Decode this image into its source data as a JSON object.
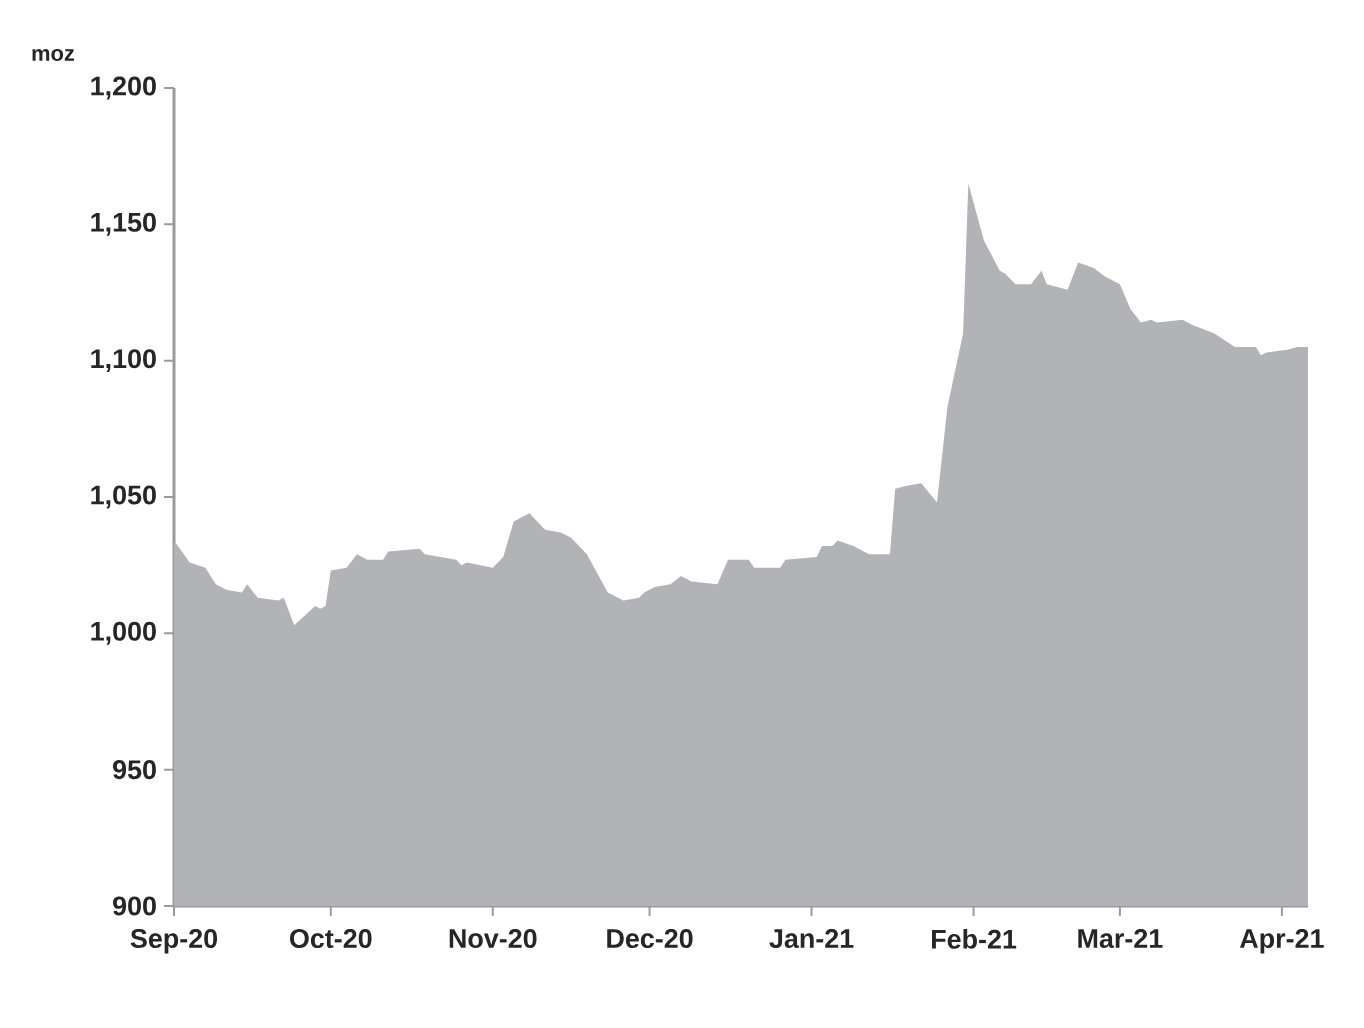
{
  "chart_data": {
    "type": "area",
    "ylabel": "moz",
    "color": "#b2b3b7",
    "x": [
      "2020-09-01",
      "2020-09-04",
      "2020-09-07",
      "2020-09-09",
      "2020-09-11",
      "2020-09-14",
      "2020-09-15",
      "2020-09-17",
      "2020-09-21",
      "2020-09-22",
      "2020-09-24",
      "2020-09-28",
      "2020-09-29",
      "2020-09-30",
      "2020-10-01",
      "2020-10-04",
      "2020-10-06",
      "2020-10-08",
      "2020-10-11",
      "2020-10-12",
      "2020-10-18",
      "2020-10-19",
      "2020-10-25",
      "2020-10-26",
      "2020-10-27",
      "2020-11-01",
      "2020-11-03",
      "2020-11-05",
      "2020-11-08",
      "2020-11-11",
      "2020-11-14",
      "2020-11-16",
      "2020-11-19",
      "2020-11-23",
      "2020-11-26",
      "2020-11-29",
      "2020-11-30",
      "2020-12-02",
      "2020-12-05",
      "2020-12-07",
      "2020-12-09",
      "2020-12-14",
      "2020-12-16",
      "2020-12-20",
      "2020-12-21",
      "2020-12-26",
      "2020-12-27",
      "2021-01-02",
      "2021-01-03",
      "2021-01-05",
      "2021-01-06",
      "2021-01-09",
      "2021-01-12",
      "2021-01-16",
      "2021-01-17",
      "2021-01-19",
      "2021-01-22",
      "2021-01-25",
      "2021-01-27",
      "2021-01-30",
      "2021-01-31",
      "2021-02-03",
      "2021-02-06",
      "2021-02-07",
      "2021-02-09",
      "2021-02-12",
      "2021-02-14",
      "2021-02-15",
      "2021-02-19",
      "2021-02-21",
      "2021-02-24",
      "2021-02-26",
      "2021-03-01",
      "2021-03-03",
      "2021-03-05",
      "2021-03-07",
      "2021-03-08",
      "2021-03-13",
      "2021-03-15",
      "2021-03-19",
      "2021-03-23",
      "2021-03-27",
      "2021-03-28",
      "2021-03-29",
      "2021-04-02",
      "2021-04-04",
      "2021-04-06"
    ],
    "values": [
      1034,
      1026,
      1024,
      1018,
      1016,
      1015,
      1018,
      1013,
      1012,
      1013,
      1003,
      1010,
      1009,
      1010,
      1023,
      1024,
      1029,
      1027,
      1027,
      1030,
      1031,
      1029,
      1027,
      1025,
      1026,
      1024,
      1028,
      1041,
      1044,
      1038,
      1037,
      1035,
      1029,
      1015,
      1012,
      1013,
      1015,
      1017,
      1018,
      1021,
      1019,
      1018,
      1027,
      1027,
      1024,
      1024,
      1027,
      1028,
      1032,
      1032,
      1034,
      1032,
      1029,
      1029,
      1053,
      1054,
      1055,
      1048,
      1083,
      1110,
      1165,
      1144,
      1133,
      1132,
      1128,
      1128,
      1133,
      1128,
      1126,
      1136,
      1134,
      1131,
      1128,
      1119,
      1114,
      1115,
      1114,
      1115,
      1113,
      1110,
      1105,
      1105,
      1102,
      1103,
      1104,
      1105,
      1105
    ],
    "xlim": [
      "2020-09-01",
      "2021-04-06"
    ],
    "xticks": [
      {
        "value": "2020-09-01",
        "label": "Sep-20"
      },
      {
        "value": "2020-10-01",
        "label": "Oct-20"
      },
      {
        "value": "2020-11-01",
        "label": "Nov-20"
      },
      {
        "value": "2020-12-01",
        "label": "Dec-20"
      },
      {
        "value": "2021-01-01",
        "label": "Jan-21"
      },
      {
        "value": "2021-02-01",
        "label": "Feb-21"
      },
      {
        "value": "2021-03-01",
        "label": "Mar-21"
      },
      {
        "value": "2021-04-01",
        "label": "Apr-21"
      }
    ],
    "ylim": [
      900,
      1200
    ],
    "yticks": [
      900,
      950,
      {
        "value": 1000,
        "label": "1,000"
      },
      {
        "value": 1050,
        "label": "1,050"
      },
      {
        "value": 1100,
        "label": "1,100"
      },
      {
        "value": 1150,
        "label": "1,150"
      },
      {
        "value": 1200,
        "label": "1,200"
      }
    ]
  }
}
